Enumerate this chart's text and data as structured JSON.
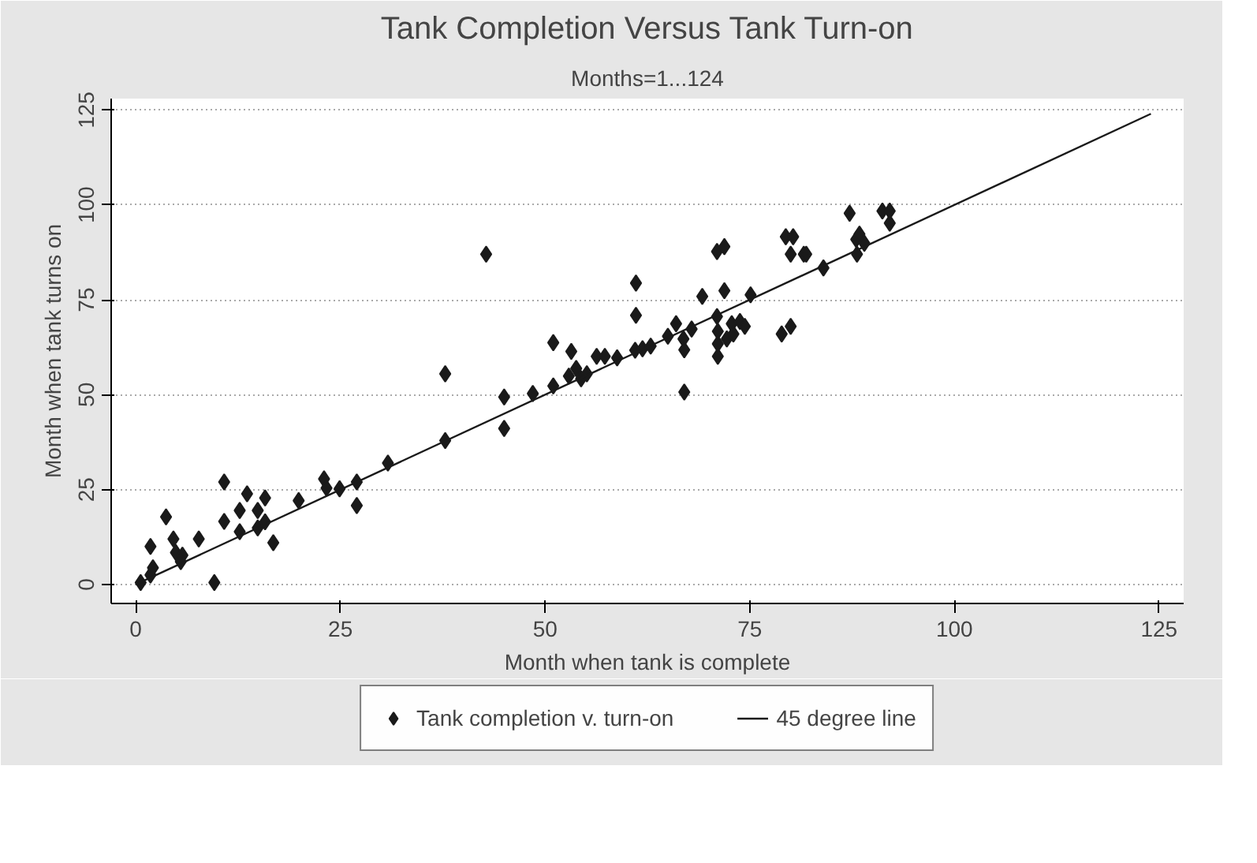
{
  "chart_data": {
    "type": "scatter",
    "title": "Tank Completion Versus Tank Turn-on",
    "subtitle": "Months=1...124",
    "xlabel": "Month when tank is complete",
    "ylabel": "Month when tank turns on",
    "xlim": [
      -3,
      128
    ],
    "ylim": [
      -5,
      128
    ],
    "xticks": [
      0,
      25,
      50,
      75,
      100,
      125
    ],
    "yticks": [
      0,
      25,
      50,
      75,
      100,
      125
    ],
    "grid": "y",
    "legend": "bottom",
    "series": [
      {
        "name": "Tank completion v. turn-on",
        "color": "#1a1a1a",
        "marker": "diamond",
        "x": [
          0.6,
          1.8,
          2.1,
          1.8,
          3.7,
          4.6,
          4.9,
          5.7,
          5.5,
          7.7,
          9.6,
          10.8,
          10.8,
          12.7,
          12.7,
          13.6,
          14.9,
          14.9,
          15.8,
          15.8,
          16.8,
          19.9,
          23,
          23.3,
          24.9,
          27,
          27,
          30.8,
          37.8,
          37.8,
          42.8,
          45,
          45,
          48.5,
          51,
          51,
          52.9,
          53.2,
          53.8,
          54.4,
          55.1,
          56.3,
          57.3,
          58.8,
          61,
          61.9,
          62.9,
          61.1,
          61.1,
          65,
          66,
          66.9,
          67,
          67,
          67.9,
          69.2,
          71,
          71.9,
          71.9,
          71,
          71.1,
          71.1,
          71.1,
          72.2,
          72.8,
          73.8,
          74.4,
          73,
          75.1,
          79.4,
          80.3,
          80,
          81.6,
          78.9,
          80,
          81.9,
          84,
          87.2,
          88,
          88.4,
          89,
          88.1,
          91.2,
          92.1,
          92.1
        ],
        "values": [
          0.5,
          2.5,
          4.4,
          10,
          17.8,
          12,
          8.4,
          7.7,
          6,
          12,
          0.5,
          27,
          16.6,
          19.5,
          13.9,
          23.9,
          19.5,
          14.9,
          22.8,
          16.5,
          11,
          22.1,
          27.8,
          25.4,
          25.2,
          27,
          20.8,
          32,
          55.5,
          37.9,
          87,
          49.4,
          41.1,
          50.3,
          63.7,
          52.3,
          54.9,
          61.4,
          56.9,
          54.2,
          55.5,
          60.1,
          60.1,
          59.7,
          61.7,
          62.1,
          62.8,
          79.4,
          70.9,
          65.4,
          68.7,
          64.7,
          61.8,
          50.7,
          67.3,
          75.9,
          87.7,
          89,
          77.4,
          70.6,
          66.7,
          63.4,
          60.1,
          64.7,
          68.7,
          69.3,
          68,
          66,
          76.3,
          91.6,
          91.6,
          87,
          87,
          66,
          68,
          87,
          83.4,
          97.8,
          90.9,
          92.3,
          89.9,
          87,
          98.4,
          98.4,
          95.2
        ]
      },
      {
        "name": "45 degree line",
        "color": "#1a1a1a",
        "type": "line",
        "line_style": "solid",
        "x": [
          0,
          124
        ],
        "values": [
          0,
          124
        ]
      }
    ]
  }
}
